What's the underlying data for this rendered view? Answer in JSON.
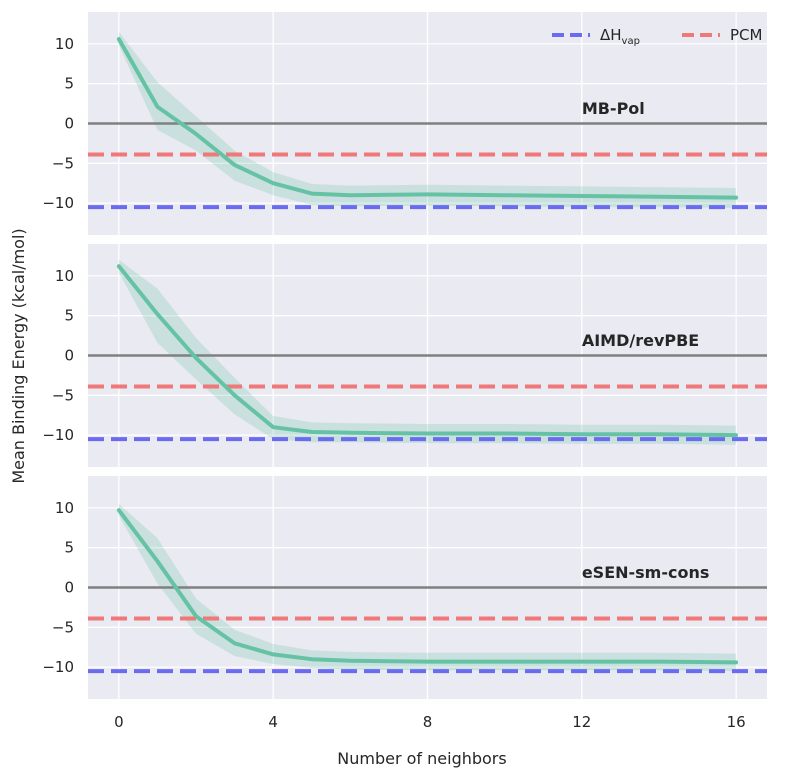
{
  "chart_data": {
    "type": "line",
    "xlabel": "Number of neighbors",
    "ylabel": "Mean Binding Energy (kcal/mol)",
    "xlim": [
      -0.8,
      16.8
    ],
    "ylim": [
      -14,
      14
    ],
    "xticks": [
      0,
      4,
      8,
      12,
      16
    ],
    "yticks": [
      10,
      5,
      0,
      -5,
      -10
    ],
    "ytick_labels": [
      "10",
      "5",
      "0",
      "−5",
      "−10"
    ],
    "legend": {
      "position": "top-right",
      "entries": [
        {
          "key": "dhvap",
          "main": "ΔH",
          "sub": "vap",
          "color": "#6b6bf2"
        },
        {
          "key": "pcm",
          "main": "PCM",
          "sub": "",
          "color": "#f07878"
        }
      ]
    },
    "reference_lines": {
      "zero": {
        "y": 0,
        "color": "#808080"
      },
      "dhvap": {
        "y": -10.5,
        "color": "#6b6bf2"
      },
      "pcm": {
        "y": -3.9,
        "color": "#f07878"
      }
    },
    "series_color": "#66c2a5",
    "panels": [
      {
        "label": "MB-Pol",
        "x": [
          0,
          1,
          2,
          3,
          4,
          5,
          6,
          8,
          10,
          12,
          14,
          16
        ],
        "y": [
          10.6,
          2.1,
          -1.3,
          -5.2,
          -7.5,
          -8.8,
          -9.0,
          -8.9,
          -9.0,
          -9.1,
          -9.2,
          -9.3
        ],
        "lower": [
          9.8,
          -0.8,
          -3.4,
          -7.2,
          -9.0,
          -10.2,
          -10.4,
          -10.3,
          -10.4,
          -10.5,
          -10.5,
          -10.6
        ],
        "upper": [
          11.5,
          5.2,
          0.9,
          -3.4,
          -6.1,
          -7.6,
          -7.8,
          -7.7,
          -7.8,
          -7.9,
          -8.0,
          -8.1
        ]
      },
      {
        "label": "AIMD/revPBE",
        "x": [
          0,
          1,
          2,
          3,
          4,
          5,
          6,
          8,
          10,
          12,
          14,
          16
        ],
        "y": [
          11.2,
          5.2,
          -0.3,
          -5.0,
          -9.0,
          -9.6,
          -9.7,
          -9.8,
          -9.8,
          -9.9,
          -9.9,
          -10.0
        ],
        "lower": [
          10.4,
          1.6,
          -3.0,
          -7.4,
          -10.5,
          -10.9,
          -10.9,
          -11.0,
          -11.0,
          -11.1,
          -11.1,
          -11.2
        ],
        "upper": [
          12.0,
          8.4,
          2.2,
          -2.8,
          -7.6,
          -8.4,
          -8.5,
          -8.6,
          -8.6,
          -8.7,
          -8.7,
          -8.8
        ]
      },
      {
        "label": "eSEN-sm-cons",
        "x": [
          0,
          1,
          2,
          3,
          4,
          5,
          6,
          8,
          10,
          12,
          14,
          16
        ],
        "y": [
          9.7,
          3.3,
          -3.6,
          -7.0,
          -8.4,
          -9.0,
          -9.2,
          -9.3,
          -9.3,
          -9.3,
          -9.3,
          -9.4
        ],
        "lower": [
          9.0,
          0.5,
          -5.8,
          -8.6,
          -9.6,
          -10.1,
          -10.3,
          -10.4,
          -10.4,
          -10.4,
          -10.4,
          -10.5
        ],
        "upper": [
          10.5,
          6.2,
          -1.4,
          -5.3,
          -7.1,
          -7.9,
          -8.1,
          -8.2,
          -8.2,
          -8.2,
          -8.2,
          -8.3
        ]
      }
    ]
  }
}
